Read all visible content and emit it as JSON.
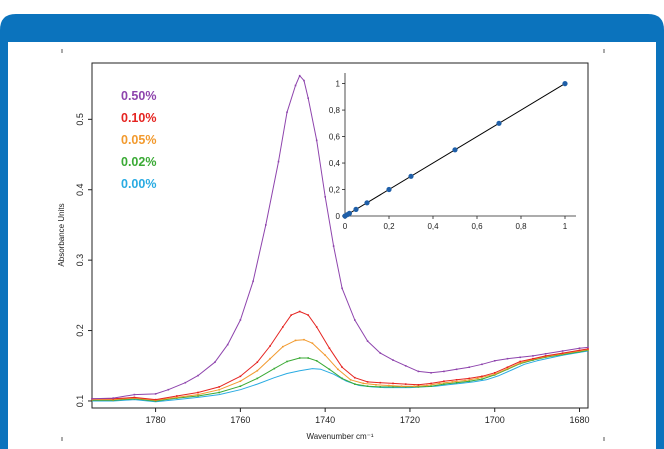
{
  "colors": {
    "banner": "#0b73bd",
    "panel_bg": "#f3f3f3",
    "axis": "#222222",
    "c050": "#8e44ad",
    "c010": "#e52421",
    "c005": "#f29a2e",
    "c002": "#3aaa35",
    "c000": "#29abe2",
    "inset_line": "#000000",
    "inset_point": "#1f5fa8"
  },
  "chart_data": [
    {
      "type": "line",
      "xlabel": "Wavenumber cm⁻¹",
      "ylabel": "Absorbance Units",
      "x_reversed": true,
      "xlim": [
        1795,
        1678
      ],
      "ylim": [
        0.09,
        0.58
      ],
      "xticks": [
        1780,
        1760,
        1740,
        1720,
        1700,
        1680
      ],
      "xtick_labels": [
        "1780",
        "1760",
        "1740",
        "1720",
        "1700",
        "1680"
      ],
      "yticks": [
        0.1,
        0.2,
        0.3,
        0.4,
        0.5
      ],
      "ytick_labels": [
        "0.1",
        "0.2",
        "0.3",
        "0.4",
        "0.5"
      ],
      "legend_position": "top-left",
      "grid": false,
      "series": [
        {
          "name": "0.50%",
          "color": "#8e44ad",
          "markers": true,
          "points": [
            [
              1795,
              0.103
            ],
            [
              1790,
              0.104
            ],
            [
              1785,
              0.109
            ],
            [
              1780,
              0.11
            ],
            [
              1777,
              0.116
            ],
            [
              1773,
              0.126
            ],
            [
              1770,
              0.136
            ],
            [
              1766,
              0.155
            ],
            [
              1763,
              0.18
            ],
            [
              1760,
              0.215
            ],
            [
              1757,
              0.27
            ],
            [
              1754,
              0.35
            ],
            [
              1751,
              0.44
            ],
            [
              1749,
              0.51
            ],
            [
              1747,
              0.548
            ],
            [
              1746,
              0.562
            ],
            [
              1745,
              0.555
            ],
            [
              1744,
              0.53
            ],
            [
              1742,
              0.47
            ],
            [
              1740,
              0.39
            ],
            [
              1738,
              0.32
            ],
            [
              1736,
              0.26
            ],
            [
              1733,
              0.215
            ],
            [
              1730,
              0.185
            ],
            [
              1727,
              0.168
            ],
            [
              1724,
              0.158
            ],
            [
              1721,
              0.15
            ],
            [
              1718,
              0.142
            ],
            [
              1715,
              0.14
            ],
            [
              1712,
              0.142
            ],
            [
              1709,
              0.145
            ],
            [
              1706,
              0.148
            ],
            [
              1703,
              0.152
            ],
            [
              1700,
              0.157
            ],
            [
              1697,
              0.16
            ],
            [
              1694,
              0.162
            ],
            [
              1691,
              0.164
            ],
            [
              1688,
              0.167
            ],
            [
              1684,
              0.171
            ],
            [
              1680,
              0.175
            ],
            [
              1678,
              0.176
            ]
          ]
        },
        {
          "name": "0.10%",
          "color": "#e52421",
          "markers": true,
          "points": [
            [
              1795,
              0.103
            ],
            [
              1790,
              0.103
            ],
            [
              1785,
              0.105
            ],
            [
              1780,
              0.102
            ],
            [
              1775,
              0.107
            ],
            [
              1770,
              0.112
            ],
            [
              1765,
              0.12
            ],
            [
              1760,
              0.135
            ],
            [
              1756,
              0.155
            ],
            [
              1753,
              0.178
            ],
            [
              1750,
              0.205
            ],
            [
              1748,
              0.222
            ],
            [
              1746,
              0.227
            ],
            [
              1744,
              0.222
            ],
            [
              1742,
              0.205
            ],
            [
              1739,
              0.175
            ],
            [
              1736,
              0.148
            ],
            [
              1733,
              0.133
            ],
            [
              1730,
              0.127
            ],
            [
              1727,
              0.126
            ],
            [
              1724,
              0.125
            ],
            [
              1721,
              0.124
            ],
            [
              1718,
              0.123
            ],
            [
              1715,
              0.125
            ],
            [
              1712,
              0.128
            ],
            [
              1709,
              0.13
            ],
            [
              1706,
              0.132
            ],
            [
              1703,
              0.135
            ],
            [
              1700,
              0.14
            ],
            [
              1697,
              0.148
            ],
            [
              1694,
              0.156
            ],
            [
              1691,
              0.16
            ],
            [
              1688,
              0.164
            ],
            [
              1684,
              0.168
            ],
            [
              1680,
              0.172
            ],
            [
              1678,
              0.174
            ]
          ]
        },
        {
          "name": "0.05%",
          "color": "#f29a2e",
          "markers": true,
          "points": [
            [
              1795,
              0.102
            ],
            [
              1790,
              0.102
            ],
            [
              1785,
              0.104
            ],
            [
              1780,
              0.101
            ],
            [
              1775,
              0.105
            ],
            [
              1770,
              0.109
            ],
            [
              1765,
              0.116
            ],
            [
              1760,
              0.128
            ],
            [
              1756,
              0.143
            ],
            [
              1753,
              0.16
            ],
            [
              1750,
              0.177
            ],
            [
              1747,
              0.186
            ],
            [
              1745,
              0.187
            ],
            [
              1743,
              0.182
            ],
            [
              1740,
              0.165
            ],
            [
              1737,
              0.145
            ],
            [
              1734,
              0.13
            ],
            [
              1731,
              0.125
            ],
            [
              1728,
              0.123
            ],
            [
              1725,
              0.122
            ],
            [
              1722,
              0.121
            ],
            [
              1719,
              0.121
            ],
            [
              1716,
              0.122
            ],
            [
              1713,
              0.125
            ],
            [
              1710,
              0.127
            ],
            [
              1707,
              0.129
            ],
            [
              1704,
              0.132
            ],
            [
              1700,
              0.138
            ],
            [
              1697,
              0.146
            ],
            [
              1694,
              0.154
            ],
            [
              1691,
              0.159
            ],
            [
              1688,
              0.163
            ],
            [
              1684,
              0.167
            ],
            [
              1680,
              0.171
            ],
            [
              1678,
              0.173
            ]
          ]
        },
        {
          "name": "0.02%",
          "color": "#3aaa35",
          "markers": true,
          "points": [
            [
              1795,
              0.101
            ],
            [
              1790,
              0.101
            ],
            [
              1785,
              0.103
            ],
            [
              1780,
              0.1
            ],
            [
              1775,
              0.104
            ],
            [
              1770,
              0.107
            ],
            [
              1765,
              0.112
            ],
            [
              1760,
              0.121
            ],
            [
              1756,
              0.132
            ],
            [
              1752,
              0.146
            ],
            [
              1749,
              0.156
            ],
            [
              1746,
              0.161
            ],
            [
              1744,
              0.161
            ],
            [
              1742,
              0.157
            ],
            [
              1739,
              0.145
            ],
            [
              1736,
              0.132
            ],
            [
              1733,
              0.124
            ],
            [
              1730,
              0.121
            ],
            [
              1727,
              0.12
            ],
            [
              1724,
              0.12
            ],
            [
              1721,
              0.12
            ],
            [
              1718,
              0.12
            ],
            [
              1715,
              0.121
            ],
            [
              1712,
              0.124
            ],
            [
              1709,
              0.126
            ],
            [
              1706,
              0.128
            ],
            [
              1703,
              0.131
            ],
            [
              1700,
              0.137
            ],
            [
              1697,
              0.145
            ],
            [
              1694,
              0.153
            ],
            [
              1691,
              0.158
            ],
            [
              1688,
              0.162
            ],
            [
              1684,
              0.166
            ],
            [
              1680,
              0.17
            ],
            [
              1678,
              0.172
            ]
          ]
        },
        {
          "name": "0.00%",
          "color": "#29abe2",
          "markers": false,
          "points": [
            [
              1795,
              0.1
            ],
            [
              1790,
              0.1
            ],
            [
              1785,
              0.102
            ],
            [
              1780,
              0.099
            ],
            [
              1775,
              0.102
            ],
            [
              1770,
              0.105
            ],
            [
              1765,
              0.109
            ],
            [
              1760,
              0.116
            ],
            [
              1756,
              0.124
            ],
            [
              1752,
              0.133
            ],
            [
              1749,
              0.139
            ],
            [
              1746,
              0.143
            ],
            [
              1743,
              0.146
            ],
            [
              1741,
              0.145
            ],
            [
              1738,
              0.138
            ],
            [
              1735,
              0.128
            ],
            [
              1732,
              0.122
            ],
            [
              1729,
              0.12
            ],
            [
              1726,
              0.119
            ],
            [
              1723,
              0.119
            ],
            [
              1720,
              0.119
            ],
            [
              1717,
              0.12
            ],
            [
              1714,
              0.121
            ],
            [
              1711,
              0.123
            ],
            [
              1708,
              0.125
            ],
            [
              1705,
              0.127
            ],
            [
              1702,
              0.13
            ],
            [
              1699,
              0.136
            ],
            [
              1696,
              0.144
            ],
            [
              1693,
              0.152
            ],
            [
              1690,
              0.157
            ],
            [
              1687,
              0.161
            ],
            [
              1684,
              0.165
            ],
            [
              1680,
              0.169
            ],
            [
              1678,
              0.171
            ]
          ]
        }
      ]
    },
    {
      "type": "scatter",
      "xlim": [
        0,
        1.05
      ],
      "ylim": [
        0,
        1.08
      ],
      "xticks": [
        0,
        0.2,
        0.4,
        0.6,
        0.8,
        1
      ],
      "xtick_labels": [
        "0",
        "0,2",
        "0,4",
        "0,6",
        "0,8",
        "1"
      ],
      "yticks": [
        0,
        0.2,
        0.4,
        0.6,
        0.8,
        1
      ],
      "ytick_labels": [
        "0",
        "0,2",
        "0,4",
        "0,6",
        "0,8",
        "1"
      ],
      "fit_line": [
        [
          0,
          0
        ],
        [
          1,
          1
        ]
      ],
      "points": [
        [
          0,
          0
        ],
        [
          0.01,
          0.01
        ],
        [
          0.02,
          0.02
        ],
        [
          0.05,
          0.05
        ],
        [
          0.1,
          0.1
        ],
        [
          0.2,
          0.2
        ],
        [
          0.3,
          0.3
        ],
        [
          0.5,
          0.5
        ],
        [
          0.7,
          0.7
        ],
        [
          1.0,
          1.0
        ]
      ]
    }
  ]
}
